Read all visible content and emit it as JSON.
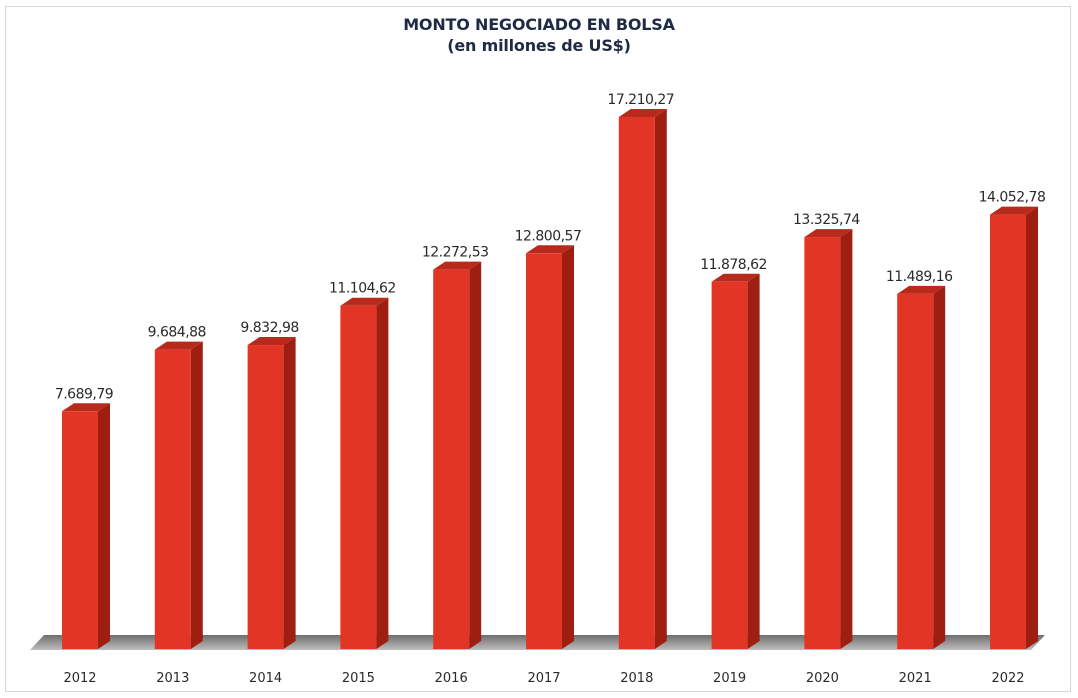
{
  "chart_data": {
    "type": "bar",
    "title": "MONTO NEGOCIADO EN BOLSA",
    "subtitle": "(en millones de US$)",
    "categories": [
      "2012",
      "2013",
      "2014",
      "2015",
      "2016",
      "2017",
      "2018",
      "2019",
      "2020",
      "2021",
      "2022"
    ],
    "values": [
      7689.79,
      9684.88,
      9832.98,
      11104.62,
      12272.53,
      12800.57,
      17210.27,
      11878.62,
      13325.74,
      11489.16,
      14052.78
    ],
    "value_labels": [
      "7.689,79",
      "9.684,88",
      "9.832,98",
      "11.104,62",
      "12.272,53",
      "12.800,57",
      "17.210,27",
      "11.878,62",
      "13.325,74",
      "11.489,16",
      "14.052,78"
    ],
    "xlabel": "",
    "ylabel": "",
    "ylim": [
      0,
      18000
    ],
    "grid": false,
    "legend": "none",
    "colors": {
      "bar_front": "#e33525",
      "bar_side": "#9e1f12",
      "bar_top": "#b82a1b",
      "floor": "#8c8c8c",
      "title": "#1f2a44"
    }
  }
}
